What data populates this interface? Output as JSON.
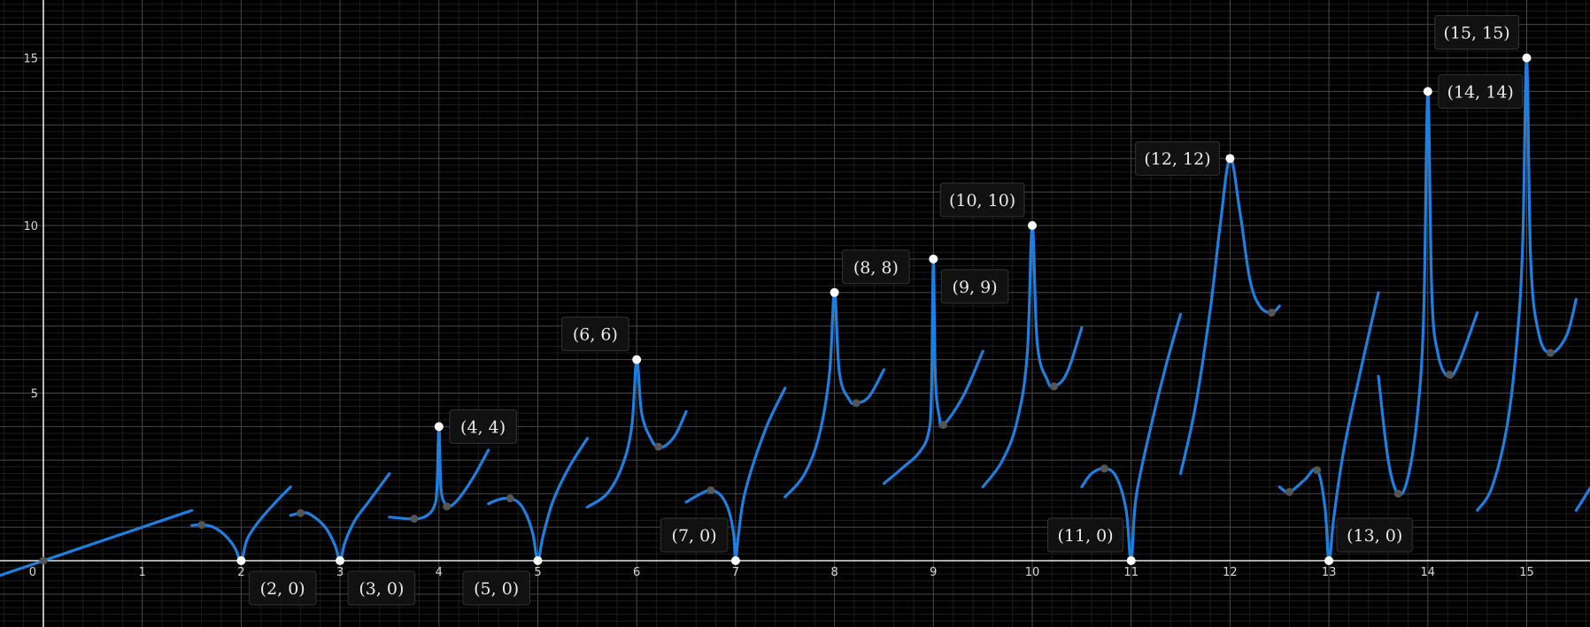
{
  "chart_data": {
    "type": "line",
    "title": "",
    "xlabel": "",
    "ylabel": "",
    "xlim": [
      -0.45,
      15.65
    ],
    "ylim": [
      -1.95,
      16.7
    ],
    "grid": true,
    "x_ticks": [
      0,
      1,
      2,
      3,
      4,
      5,
      6,
      7,
      8,
      9,
      10,
      11,
      12,
      13,
      14,
      15
    ],
    "y_ticks": [
      5,
      10,
      15
    ],
    "x_tick_labels": [
      "0",
      "1",
      "2",
      "3",
      "4",
      "5",
      "6",
      "7",
      "8",
      "9",
      "10",
      "11",
      "12",
      "13",
      "14",
      "15"
    ],
    "y_tick_labels": [
      "5",
      "10",
      "15"
    ],
    "series": [
      {
        "x": [
          -0.45,
          0,
          0.5,
          1,
          1.5
        ],
        "y": [
          -0.45,
          0,
          0.5,
          1,
          1.5
        ]
      },
      {
        "x": [
          1.5,
          1.6,
          1.7,
          1.8,
          1.9,
          1.95,
          2,
          2.05,
          2.1,
          2.2,
          2.35,
          2.5
        ],
        "y": [
          1.05,
          1.07,
          1.02,
          0.85,
          0.55,
          0.3,
          0,
          0.55,
          0.85,
          1.25,
          1.75,
          2.2
        ]
      },
      {
        "x": [
          2.5,
          2.6,
          2.7,
          2.85,
          2.95,
          3,
          3.05,
          3.15,
          3.3,
          3.5
        ],
        "y": [
          1.35,
          1.42,
          1.38,
          1.0,
          0.45,
          0,
          0.55,
          1.2,
          1.8,
          2.6
        ]
      },
      {
        "x": [
          3.5,
          3.7,
          3.85,
          3.95,
          3.98,
          4,
          4.02,
          4.06,
          4.1,
          4.2,
          4.35,
          4.5
        ],
        "y": [
          1.3,
          1.25,
          1.3,
          1.6,
          2.2,
          4,
          2.2,
          1.7,
          1.6,
          1.85,
          2.5,
          3.3
        ]
      },
      {
        "x": [
          4.5,
          4.6,
          4.7,
          4.8,
          4.88,
          4.95,
          5,
          5.05,
          5.15,
          5.3,
          5.5
        ],
        "y": [
          1.7,
          1.82,
          1.86,
          1.75,
          1.4,
          0.8,
          0,
          0.7,
          1.75,
          2.7,
          3.65
        ]
      },
      {
        "x": [
          5.5,
          5.7,
          5.85,
          5.95,
          6,
          6.05,
          6.15,
          6.22,
          6.3,
          6.4,
          6.5
        ],
        "y": [
          1.6,
          2.0,
          2.8,
          4.0,
          6,
          4.4,
          3.6,
          3.4,
          3.45,
          3.8,
          4.45
        ]
      },
      {
        "x": [
          6.5,
          6.65,
          6.75,
          6.85,
          6.93,
          6.98,
          7,
          7.03,
          7.1,
          7.3,
          7.5
        ],
        "y": [
          1.75,
          2.0,
          2.1,
          1.95,
          1.5,
          0.8,
          0,
          0.8,
          2.1,
          3.9,
          5.15
        ]
      },
      {
        "x": [
          7.5,
          7.7,
          7.85,
          7.95,
          8,
          8.05,
          8.15,
          8.22,
          8.35,
          8.5
        ],
        "y": [
          1.9,
          2.6,
          3.8,
          5.6,
          8,
          5.6,
          4.8,
          4.7,
          4.9,
          5.7
        ]
      },
      {
        "x": [
          8.5,
          8.7,
          8.85,
          8.95,
          8.98,
          9,
          9.02,
          9.06,
          9.1,
          9.3,
          9.5
        ],
        "y": [
          2.3,
          2.8,
          3.2,
          3.8,
          5.0,
          9,
          5.5,
          4.3,
          4.05,
          4.9,
          6.25
        ]
      },
      {
        "x": [
          9.5,
          9.7,
          9.85,
          9.95,
          10,
          10.05,
          10.15,
          10.22,
          10.35,
          10.5
        ],
        "y": [
          2.2,
          3.0,
          4.2,
          6.2,
          10,
          6.5,
          5.4,
          5.2,
          5.6,
          6.95
        ]
      },
      {
        "x": [
          10.5,
          10.6,
          10.73,
          10.85,
          10.95,
          11,
          11.05,
          11.2,
          11.35,
          11.5
        ],
        "y": [
          2.2,
          2.6,
          2.75,
          2.5,
          1.5,
          0,
          1.9,
          4.0,
          5.8,
          7.35
        ]
      },
      {
        "x": [
          11.5,
          11.65,
          11.8,
          11.9,
          12,
          12.1,
          12.2,
          12.3,
          12.42,
          12.5
        ],
        "y": [
          2.6,
          4.6,
          7.5,
          10.0,
          12,
          10.4,
          8.4,
          7.6,
          7.4,
          7.6
        ]
      },
      {
        "x": [
          12.5,
          12.6,
          12.75,
          12.88,
          12.96,
          13,
          13.05,
          13.15,
          13.3,
          13.5
        ],
        "y": [
          2.2,
          2.05,
          2.4,
          2.7,
          1.6,
          0,
          1.3,
          3.3,
          5.4,
          8.0
        ]
      },
      {
        "x": [
          13.5,
          13.6,
          13.7,
          13.8,
          13.9,
          13.96,
          14,
          14.04,
          14.1,
          14.2,
          14.3,
          14.5
        ],
        "y": [
          5.5,
          3.0,
          2.0,
          2.5,
          4.5,
          7.5,
          14,
          8.0,
          6.2,
          5.5,
          5.8,
          7.4
        ]
      },
      {
        "x": [
          14.5,
          14.65,
          14.8,
          14.9,
          14.96,
          15,
          15.04,
          15.12,
          15.24,
          15.4,
          15.5
        ],
        "y": [
          1.5,
          2.2,
          4.0,
          6.5,
          9.5,
          15,
          9.0,
          6.8,
          6.2,
          6.7,
          7.8
        ]
      },
      {
        "x": [
          15.5,
          15.65
        ],
        "y": [
          1.5,
          2.2
        ]
      }
    ],
    "open_points": [
      {
        "x": 2,
        "y": 0,
        "label": "(2, 0)",
        "pos": "below-right"
      },
      {
        "x": 3,
        "y": 0,
        "label": "(3, 0)",
        "pos": "below-right"
      },
      {
        "x": 4,
        "y": 4,
        "label": "(4, 4)",
        "pos": "right"
      },
      {
        "x": 5,
        "y": 0,
        "label": "(5, 0)",
        "pos": "below-left"
      },
      {
        "x": 6,
        "y": 6,
        "label": "(6, 6)",
        "pos": "above-left"
      },
      {
        "x": 7,
        "y": 0,
        "label": "(7, 0)",
        "pos": "above-left"
      },
      {
        "x": 8,
        "y": 8,
        "label": "(8, 8)",
        "pos": "above-right"
      },
      {
        "x": 9,
        "y": 9,
        "label": "(9, 9)",
        "pos": "below-right"
      },
      {
        "x": 10,
        "y": 10,
        "label": "(10, 10)",
        "pos": "above-left"
      },
      {
        "x": 11,
        "y": 0,
        "label": "(11, 0)",
        "pos": "above-left"
      },
      {
        "x": 12,
        "y": 12,
        "label": "(12, 12)",
        "pos": "left"
      },
      {
        "x": 13,
        "y": 0,
        "label": "(13, 0)",
        "pos": "above-right"
      },
      {
        "x": 14,
        "y": 14,
        "label": "(14, 14)",
        "pos": "right"
      },
      {
        "x": 15,
        "y": 15,
        "label": "(15, 15)",
        "pos": "above-left"
      }
    ],
    "marked_points": [
      {
        "x": 0,
        "y": 0
      },
      {
        "x": 1.6,
        "y": 1.07
      },
      {
        "x": 2.6,
        "y": 1.42
      },
      {
        "x": 3.75,
        "y": 1.25
      },
      {
        "x": 4.08,
        "y": 1.62
      },
      {
        "x": 4.72,
        "y": 1.86
      },
      {
        "x": 6.22,
        "y": 3.4
      },
      {
        "x": 6.75,
        "y": 2.1
      },
      {
        "x": 8.22,
        "y": 4.7
      },
      {
        "x": 9.1,
        "y": 4.05
      },
      {
        "x": 10.22,
        "y": 5.2
      },
      {
        "x": 10.73,
        "y": 2.75
      },
      {
        "x": 12.42,
        "y": 7.4
      },
      {
        "x": 12.6,
        "y": 2.05
      },
      {
        "x": 12.88,
        "y": 2.7
      },
      {
        "x": 13.7,
        "y": 2.0
      },
      {
        "x": 14.22,
        "y": 5.55
      },
      {
        "x": 15.24,
        "y": 6.2
      }
    ]
  }
}
